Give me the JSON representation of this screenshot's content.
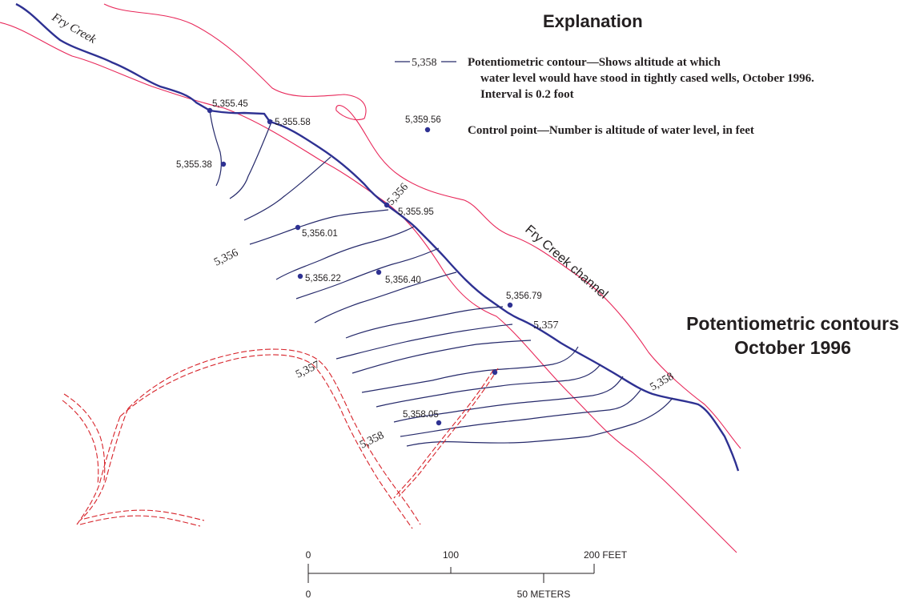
{
  "explanation": {
    "title": "Explanation",
    "contour_sample_value": "5,358",
    "contour_text_line1": "Potentiometric contour—Shows altitude at which",
    "contour_text_line2": "water level would have stood in tightly cased wells, October 1996.",
    "contour_text_line3": "Interval is 0.2 foot",
    "control_sample_value": "5,359.56",
    "control_text": "Control point—Number is altitude of water level, in feet"
  },
  "map_title": {
    "line1": "Potentiometric contours",
    "line2": "October 1996"
  },
  "features": {
    "creek_label": "Fry Creek",
    "channel_label": "Fry Creek channel"
  },
  "control_points": [
    {
      "label": "5,355.45"
    },
    {
      "label": "5,355.58"
    },
    {
      "label": "5,355.38"
    },
    {
      "label": "5,355.95"
    },
    {
      "label": "5,356.01"
    },
    {
      "label": "5,356.22"
    },
    {
      "label": "5,356.40"
    },
    {
      "label": "5,356.79"
    },
    {
      "label": "5,358.05"
    },
    {
      "label": ""
    }
  ],
  "contour_labels": [
    {
      "label": "5,356"
    },
    {
      "label": "5,356"
    },
    {
      "label": "5,357"
    },
    {
      "label": "5,357"
    },
    {
      "label": "5,358"
    },
    {
      "label": "5,358"
    }
  ],
  "scale_bar": {
    "feet_ticks": [
      "0",
      "100",
      "200 FEET"
    ],
    "meter_ticks": [
      "0",
      "50 METERS"
    ]
  },
  "colors": {
    "creek": "#2e3192",
    "contour": "#262a6b",
    "channel_bank": "#e8285a",
    "dashed_feature": "#d7232a",
    "control_point": "#2e3192"
  }
}
